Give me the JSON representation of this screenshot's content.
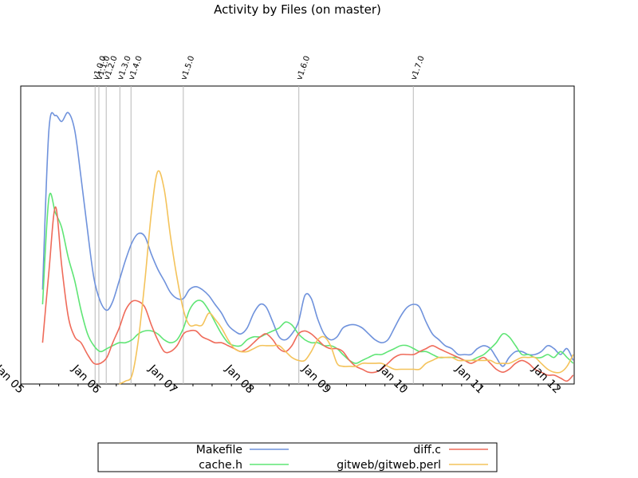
{
  "chart_data": {
    "type": "line",
    "title": "Activity by Files (on master)",
    "xlabel": "",
    "ylabel": "",
    "x_ticks": [
      "Jan 05",
      "Jan 06",
      "Jan 07",
      "Jan 08",
      "Jan 09",
      "Jan 10",
      "Jan 11",
      "Jan 12"
    ],
    "x_range": [
      "2005-01-01",
      "2012-03-20"
    ],
    "y_range": [
      0,
      100
    ],
    "y_ticks_shown": false,
    "grid": false,
    "legend_position": "bottom",
    "releases": [
      {
        "label": "v1.0.0",
        "date": "2005-12-21"
      },
      {
        "label": "v1.1.0",
        "date": "2006-01-08"
      },
      {
        "label": "v1.2.0",
        "date": "2006-02-12"
      },
      {
        "label": "v1.3.0",
        "date": "2006-04-18"
      },
      {
        "label": "v1.4.0",
        "date": "2006-06-10"
      },
      {
        "label": "v1.5.0",
        "date": "2007-02-14"
      },
      {
        "label": "v1.6.0",
        "date": "2008-08-17"
      },
      {
        "label": "v1.7.0",
        "date": "2010-02-13"
      }
    ],
    "x": [
      "2005-04",
      "2005-05",
      "2005-06",
      "2005-07",
      "2005-08",
      "2005-09",
      "2005-10",
      "2005-11",
      "2005-12",
      "2006-01",
      "2006-02",
      "2006-03",
      "2006-04",
      "2006-05",
      "2006-06",
      "2006-07",
      "2006-08",
      "2006-09",
      "2006-10",
      "2006-11",
      "2006-12",
      "2007-01",
      "2007-02",
      "2007-03",
      "2007-04",
      "2007-05",
      "2007-06",
      "2007-07",
      "2007-08",
      "2007-09",
      "2007-10",
      "2007-11",
      "2007-12",
      "2008-01",
      "2008-02",
      "2008-03",
      "2008-04",
      "2008-05",
      "2008-06",
      "2008-07",
      "2008-08",
      "2008-09",
      "2008-10",
      "2008-11",
      "2008-12",
      "2009-01",
      "2009-02",
      "2009-03",
      "2009-04",
      "2009-05",
      "2009-06",
      "2009-07",
      "2009-08",
      "2009-09",
      "2009-10",
      "2009-11",
      "2009-12",
      "2010-01",
      "2010-02",
      "2010-03",
      "2010-04",
      "2010-05",
      "2010-06",
      "2010-07",
      "2010-08",
      "2010-09",
      "2010-10",
      "2010-11",
      "2010-12",
      "2011-01",
      "2011-02",
      "2011-03",
      "2011-04",
      "2011-05",
      "2011-06",
      "2011-07",
      "2011-08",
      "2011-09",
      "2011-10",
      "2011-11",
      "2011-12",
      "2012-01",
      "2012-02",
      "2012-03"
    ],
    "series": [
      {
        "name": "Makefile",
        "color": "#6f92dc",
        "values": [
          32,
          86,
          91,
          89,
          92,
          86,
          70,
          52,
          36,
          28,
          25,
          28,
          35,
          42,
          48,
          51,
          50,
          44,
          39,
          35,
          31,
          29,
          29,
          32,
          33,
          32,
          30,
          27,
          24,
          20,
          18,
          17,
          19,
          24,
          27,
          26,
          21,
          16,
          15,
          17,
          21,
          30,
          29,
          22,
          17,
          15,
          16,
          19,
          20,
          20,
          19,
          17,
          15,
          14,
          15,
          19,
          23,
          26,
          27,
          26,
          21,
          17,
          15,
          13,
          12,
          10,
          10,
          10,
          12,
          13,
          12,
          9,
          6,
          9,
          11,
          11,
          10,
          10,
          11,
          13,
          12,
          10,
          12,
          8
        ]
      },
      {
        "name": "cache.h",
        "color": "#5fe575",
        "values": [
          27,
          63,
          58,
          53,
          43,
          35,
          25,
          17,
          13,
          11,
          12,
          13,
          14,
          14,
          15,
          17,
          18,
          18,
          17,
          15,
          14,
          15,
          19,
          25,
          28,
          28,
          25,
          21,
          17,
          14,
          13,
          13,
          15,
          16,
          16,
          17,
          18,
          19,
          21,
          20,
          17,
          15,
          14,
          14,
          13,
          13,
          12,
          10,
          8,
          7,
          8,
          9,
          10,
          10,
          11,
          12,
          13,
          13,
          12,
          11,
          11,
          10,
          9,
          9,
          9,
          9,
          8,
          8,
          9,
          10,
          12,
          14,
          17,
          16,
          13,
          10,
          10,
          9,
          9,
          10,
          9,
          11,
          9,
          7
        ]
      },
      {
        "name": "diff.c",
        "color": "#ef6b5a",
        "values": [
          14,
          38,
          60,
          40,
          23,
          16,
          14,
          10,
          7,
          7,
          9,
          14,
          19,
          25,
          28,
          28,
          26,
          20,
          15,
          11,
          11,
          13,
          17,
          18,
          18,
          16,
          15,
          14,
          14,
          13,
          12,
          11,
          12,
          14,
          16,
          17,
          15,
          12,
          11,
          13,
          17,
          18,
          17,
          15,
          13,
          12,
          12,
          11,
          8,
          6,
          5,
          4,
          4,
          5,
          7,
          9,
          10,
          10,
          10,
          11,
          12,
          13,
          12,
          11,
          10,
          9,
          8,
          7,
          8,
          9,
          7,
          5,
          4,
          5,
          7,
          8,
          7,
          5,
          4,
          3,
          3,
          2,
          1,
          3
        ]
      },
      {
        "name": "gitweb/gitweb.perl",
        "color": "#f4c35b",
        "values": [
          null,
          null,
          null,
          null,
          null,
          null,
          null,
          null,
          null,
          null,
          null,
          null,
          0,
          1,
          3,
          15,
          35,
          58,
          72,
          66,
          50,
          36,
          25,
          20,
          20,
          20,
          24,
          22,
          19,
          15,
          12,
          11,
          11,
          12,
          13,
          13,
          13,
          13,
          11,
          9,
          8,
          8,
          11,
          15,
          16,
          13,
          7,
          6,
          6,
          6,
          7,
          7,
          7,
          7,
          6,
          5,
          5,
          5,
          5,
          5,
          7,
          8,
          9,
          9,
          9,
          8,
          8,
          8,
          8,
          8,
          8,
          7,
          7,
          7,
          8,
          9,
          9,
          9,
          7,
          5,
          4,
          4,
          6,
          10
        ]
      }
    ]
  }
}
